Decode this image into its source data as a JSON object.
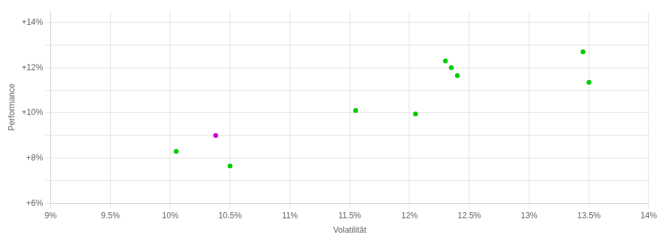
{
  "chart_data": {
    "type": "scatter",
    "xlabel": "Volatilität",
    "ylabel": "Performance",
    "grid": true,
    "xlim": [
      0.09,
      0.14
    ],
    "ylim": [
      0.06,
      0.145
    ],
    "xticks": [
      {
        "value": 0.09,
        "label": "9%"
      },
      {
        "value": 0.095,
        "label": "9.5%"
      },
      {
        "value": 0.1,
        "label": "10%"
      },
      {
        "value": 0.105,
        "label": "10.5%"
      },
      {
        "value": 0.11,
        "label": "11%"
      },
      {
        "value": 0.115,
        "label": "11.5%"
      },
      {
        "value": 0.12,
        "label": "12%"
      },
      {
        "value": 0.125,
        "label": "12.5%"
      },
      {
        "value": 0.13,
        "label": "13%"
      },
      {
        "value": 0.135,
        "label": "13.5%"
      },
      {
        "value": 0.14,
        "label": "14%"
      }
    ],
    "yticks": [
      {
        "value": 0.06,
        "label": "+6%"
      },
      {
        "value": 0.07,
        "label": ""
      },
      {
        "value": 0.08,
        "label": "+8%"
      },
      {
        "value": 0.09,
        "label": ""
      },
      {
        "value": 0.1,
        "label": "+10%"
      },
      {
        "value": 0.11,
        "label": ""
      },
      {
        "value": 0.12,
        "label": "+12%"
      },
      {
        "value": 0.13,
        "label": ""
      },
      {
        "value": 0.14,
        "label": "+14%"
      }
    ],
    "series": [
      {
        "color": "#00cc00",
        "x": [
          0.1005,
          0.105,
          0.1155,
          0.1205,
          0.123,
          0.1235,
          0.124,
          0.1345,
          0.135
        ],
        "values": [
          0.083,
          0.0765,
          0.101,
          0.0995,
          0.123,
          0.12,
          0.1165,
          0.127,
          0.1135
        ]
      },
      {
        "color": "#cc00cc",
        "x": [
          0.1038
        ],
        "values": [
          0.09
        ]
      }
    ]
  }
}
